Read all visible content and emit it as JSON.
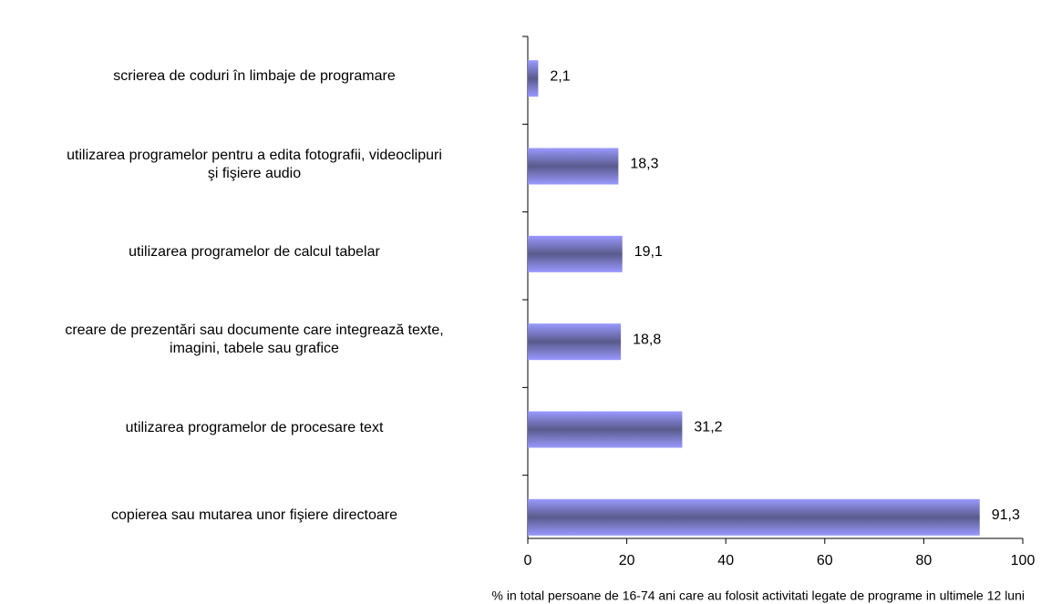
{
  "chart_data": {
    "type": "hbar",
    "categories": [
      "scrierea de coduri în limbaje de programare",
      "utilizarea programelor pentru a edita fotografii, videoclipuri\nşi fişiere audio",
      "utilizarea programelor de calcul tabelar",
      "creare de prezentări sau documente care integrează texte,\nimagini, tabele sau grafice",
      "utilizarea programelor de procesare text",
      "copierea sau mutarea unor fişiere directoare"
    ],
    "values": [
      2.1,
      18.3,
      19.1,
      18.8,
      31.2,
      91.3
    ],
    "value_labels": [
      "2,1",
      "18,3",
      "19,1",
      "18,8",
      "31,2",
      "91,3"
    ],
    "color": "#9999ff",
    "xlim": [
      0,
      100
    ],
    "xticks": [
      0,
      20,
      40,
      60,
      80,
      100
    ],
    "x_label": "% in total persoane de 16-74 ani care au folosit activitati legate de programe in ultimele 12 luni"
  }
}
